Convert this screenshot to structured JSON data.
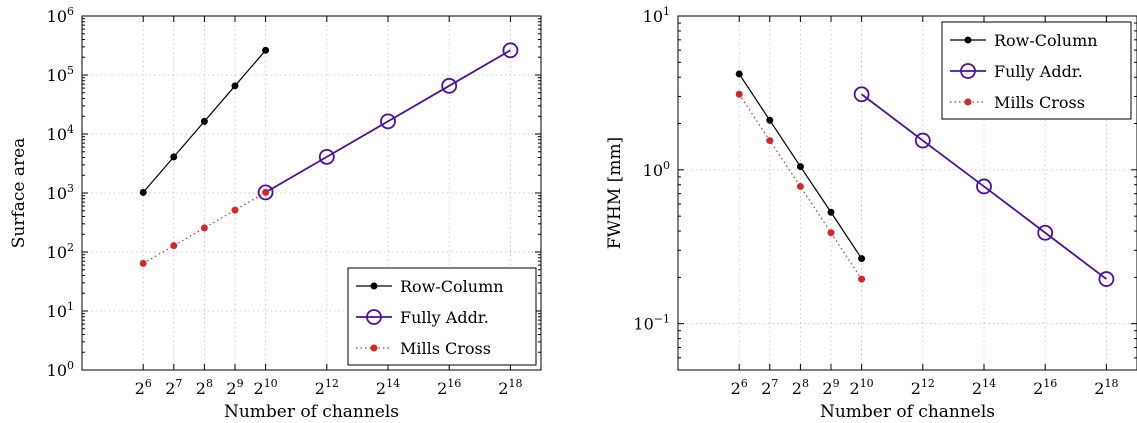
{
  "chart_data": [
    {
      "type": "line",
      "xscale": "log2",
      "yscale": "log10",
      "xlabel": "Number of channels",
      "ylabel": "Surface area",
      "xlim": [
        16,
        524288
      ],
      "ylim": [
        1,
        1000000
      ],
      "x_ticks": [
        {
          "base": "2",
          "exp": "6",
          "value": 64
        },
        {
          "base": "2",
          "exp": "7",
          "value": 128
        },
        {
          "base": "2",
          "exp": "8",
          "value": 256
        },
        {
          "base": "2",
          "exp": "9",
          "value": 512
        },
        {
          "base": "2",
          "exp": "10",
          "value": 1024
        },
        {
          "base": "2",
          "exp": "12",
          "value": 4096
        },
        {
          "base": "2",
          "exp": "14",
          "value": 16384
        },
        {
          "base": "2",
          "exp": "16",
          "value": 65536
        },
        {
          "base": "2",
          "exp": "18",
          "value": 262144
        }
      ],
      "y_ticks": [
        {
          "base": "10",
          "exp": "0",
          "value": 1
        },
        {
          "base": "10",
          "exp": "1",
          "value": 10
        },
        {
          "base": "10",
          "exp": "2",
          "value": 100
        },
        {
          "base": "10",
          "exp": "3",
          "value": 1000
        },
        {
          "base": "10",
          "exp": "4",
          "value": 10000
        },
        {
          "base": "10",
          "exp": "5",
          "value": 100000
        },
        {
          "base": "10",
          "exp": "6",
          "value": 1000000
        }
      ],
      "grid": true,
      "legend_position": "bottom-right",
      "series": [
        {
          "name": "Row-Column",
          "color": "#000000",
          "style": "solid-dot",
          "x": [
            64,
            128,
            256,
            512,
            1024
          ],
          "y": [
            1024,
            4096,
            16384,
            65536,
            262144
          ]
        },
        {
          "name": "Fully Addr.",
          "color": "#4b0fa6",
          "style": "solid-circle",
          "x": [
            1024,
            4096,
            16384,
            65536,
            262144
          ],
          "y": [
            1024,
            4096,
            16384,
            65536,
            262144
          ]
        },
        {
          "name": "Mills Cross",
          "color": "#d62728",
          "style": "dotted-dot",
          "x": [
            64,
            128,
            256,
            512,
            1024
          ],
          "y": [
            64,
            128,
            256,
            512,
            1024
          ]
        }
      ]
    },
    {
      "type": "line",
      "xscale": "log2",
      "yscale": "log10",
      "xlabel": "Number of channels",
      "ylabel": "FWHM [mm]",
      "xlim": [
        16,
        524288
      ],
      "ylim": [
        0.05,
        10
      ],
      "x_ticks": [
        {
          "base": "2",
          "exp": "6",
          "value": 64
        },
        {
          "base": "2",
          "exp": "7",
          "value": 128
        },
        {
          "base": "2",
          "exp": "8",
          "value": 256
        },
        {
          "base": "2",
          "exp": "9",
          "value": 512
        },
        {
          "base": "2",
          "exp": "10",
          "value": 1024
        },
        {
          "base": "2",
          "exp": "12",
          "value": 4096
        },
        {
          "base": "2",
          "exp": "14",
          "value": 16384
        },
        {
          "base": "2",
          "exp": "16",
          "value": 65536
        },
        {
          "base": "2",
          "exp": "18",
          "value": 262144
        }
      ],
      "y_ticks": [
        {
          "base": "10",
          "exp": "−1",
          "value": 0.1
        },
        {
          "base": "10",
          "exp": "0",
          "value": 1
        },
        {
          "base": "10",
          "exp": "1",
          "value": 10
        }
      ],
      "grid": true,
      "legend_position": "top-right",
      "series": [
        {
          "name": "Row-Column",
          "color": "#000000",
          "style": "solid-dot",
          "x": [
            64,
            128,
            256,
            512,
            1024
          ],
          "y": [
            4.2,
            2.1,
            1.05,
            0.53,
            0.265
          ]
        },
        {
          "name": "Fully Addr.",
          "color": "#4b0fa6",
          "style": "solid-circle",
          "x": [
            1024,
            4096,
            16384,
            65536,
            262144
          ],
          "y": [
            3.1,
            1.55,
            0.78,
            0.39,
            0.195
          ]
        },
        {
          "name": "Mills Cross",
          "color": "#d62728",
          "style": "dotted-dot",
          "x": [
            64,
            128,
            256,
            512,
            1024
          ],
          "y": [
            3.1,
            1.55,
            0.78,
            0.39,
            0.195
          ]
        }
      ]
    }
  ]
}
